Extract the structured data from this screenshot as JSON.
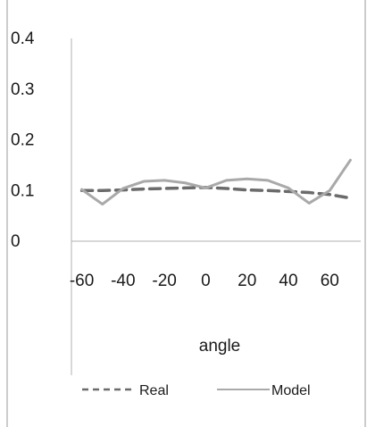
{
  "chart_data": {
    "type": "line",
    "title": "",
    "xlabel": "angle",
    "ylabel": "",
    "x_ticks": [
      "-60",
      "-40",
      "-20",
      "0",
      "20",
      "40",
      "60"
    ],
    "y_ticks": [
      "0",
      "0.1",
      "0.2",
      "0.3",
      "0.4"
    ],
    "xlim": [
      -65,
      75
    ],
    "ylim": [
      0,
      0.4
    ],
    "grid": false,
    "legend_position": "bottom",
    "series": [
      {
        "name": "Real",
        "style": "dashed",
        "color": "#6b6b6b",
        "x": [
          -60,
          -50,
          -40,
          -30,
          -20,
          -10,
          0,
          10,
          20,
          30,
          40,
          50,
          60,
          70
        ],
        "y": [
          0.1,
          0.1,
          0.101,
          0.103,
          0.104,
          0.105,
          0.106,
          0.104,
          0.101,
          0.1,
          0.098,
          0.096,
          0.092,
          0.085
        ]
      },
      {
        "name": "Model",
        "style": "solid",
        "color": "#a9a9a9",
        "x": [
          -60,
          -50,
          -40,
          -30,
          -20,
          -10,
          0,
          10,
          20,
          30,
          40,
          50,
          60,
          70
        ],
        "y": [
          0.102,
          0.073,
          0.104,
          0.118,
          0.12,
          0.115,
          0.105,
          0.12,
          0.123,
          0.12,
          0.105,
          0.075,
          0.1,
          0.16
        ]
      }
    ]
  }
}
